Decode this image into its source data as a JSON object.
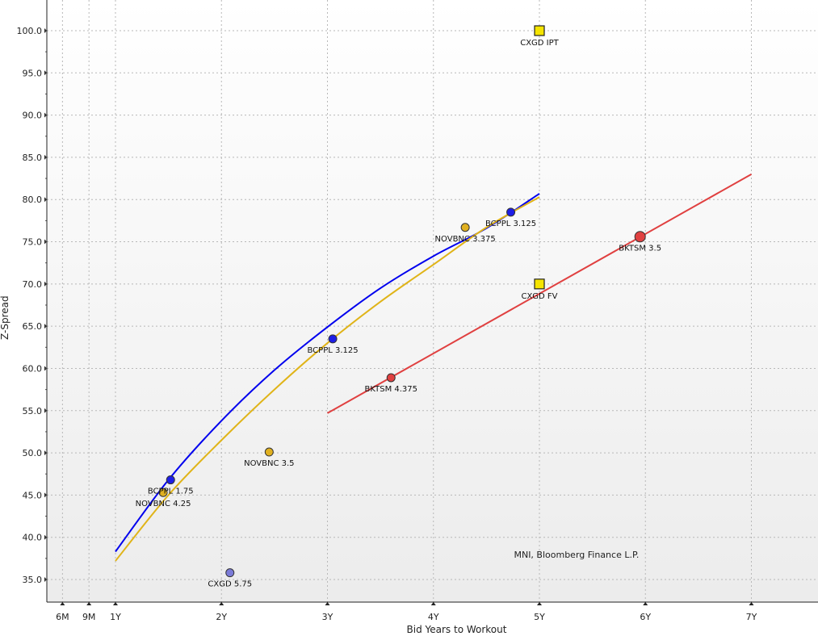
{
  "chart_data": {
    "type": "scatter",
    "xlabel": "Bid Years to Workout",
    "ylabel": "Z-Spread",
    "xlim": [
      0.3,
      8.0
    ],
    "ylim": [
      32.5,
      103.5
    ],
    "x_ticks": [
      {
        "value": 0.5,
        "label": "6M"
      },
      {
        "value": 0.75,
        "label": "9M"
      },
      {
        "value": 1,
        "label": "1Y"
      },
      {
        "value": 2,
        "label": "2Y"
      },
      {
        "value": 3,
        "label": "3Y"
      },
      {
        "value": 4,
        "label": "4Y"
      },
      {
        "value": 5,
        "label": "5Y"
      },
      {
        "value": 6,
        "label": "6Y"
      },
      {
        "value": 7,
        "label": "7Y"
      }
    ],
    "y_ticks": [
      {
        "value": 35,
        "label": "35.0"
      },
      {
        "value": 40,
        "label": "40.0"
      },
      {
        "value": 45,
        "label": "45.0"
      },
      {
        "value": 50,
        "label": "50.0"
      },
      {
        "value": 55,
        "label": "55.0"
      },
      {
        "value": 60,
        "label": "60.0"
      },
      {
        "value": 65,
        "label": "65.0"
      },
      {
        "value": 70,
        "label": "70.0"
      },
      {
        "value": 75,
        "label": "75.0"
      },
      {
        "value": 80,
        "label": "80.0"
      },
      {
        "value": 85,
        "label": "85.0"
      },
      {
        "value": 90,
        "label": "90.0"
      },
      {
        "value": 95,
        "label": "95.0"
      },
      {
        "value": 100,
        "label": "100.0"
      }
    ],
    "grid": true,
    "series": [
      {
        "color": "#1e1ee6",
        "line_color": "#0000ee",
        "curve": [
          [
            1.0,
            38.3
          ],
          [
            1.5,
            46.8
          ],
          [
            2.0,
            53.8
          ],
          [
            2.5,
            59.8
          ],
          [
            3.0,
            64.9
          ],
          [
            3.5,
            69.5
          ],
          [
            4.0,
            73.3
          ],
          [
            4.5,
            76.6
          ],
          [
            5.0,
            80.7
          ]
        ],
        "points": [
          {
            "x": 1.52,
            "y": 46.8,
            "label": "BCPPL 1.75"
          },
          {
            "x": 3.05,
            "y": 63.5,
            "label": "BCPPL 3.125"
          },
          {
            "x": 4.73,
            "y": 78.5,
            "label": "BCPPL 3.125"
          }
        ]
      },
      {
        "color": "#e0b020",
        "line_color": "#e0b418",
        "curve": [
          [
            1.0,
            37.2
          ],
          [
            1.5,
            45.0
          ],
          [
            2.0,
            51.5
          ],
          [
            2.5,
            57.5
          ],
          [
            3.0,
            63.0
          ],
          [
            3.5,
            67.9
          ],
          [
            4.0,
            72.3
          ],
          [
            4.5,
            76.7
          ],
          [
            5.0,
            80.3
          ]
        ],
        "points": [
          {
            "x": 1.45,
            "y": 45.3,
            "label": "NOVBNC 4.25"
          },
          {
            "x": 2.45,
            "y": 50.1,
            "label": "NOVBNC 3.5"
          },
          {
            "x": 4.3,
            "y": 76.7,
            "label": "NOVBNC 3.375"
          }
        ]
      },
      {
        "color": "#e04040",
        "line_color": "#e04040",
        "curve": [
          [
            3.0,
            54.7
          ],
          [
            7.0,
            83.0
          ]
        ],
        "points": [
          {
            "x": 3.6,
            "y": 58.9,
            "label": "BKTSM 4.375"
          },
          {
            "x": 5.95,
            "y": 75.6,
            "label": "BKTSM 3.5",
            "large": true
          }
        ]
      },
      {
        "color": "#7b7bd8",
        "points": [
          {
            "x": 2.08,
            "y": 35.8,
            "label": "CXGD 5.75"
          }
        ]
      },
      {
        "color": "#f5e400",
        "marker": "square",
        "points": [
          {
            "x": 5.0,
            "y": 100.0,
            "label": "CXGD IPT"
          },
          {
            "x": 5.0,
            "y": 70.0,
            "label": "CXGD FV"
          }
        ]
      }
    ],
    "annotations": [
      "MNI, Bloomberg Finance L.P."
    ]
  }
}
